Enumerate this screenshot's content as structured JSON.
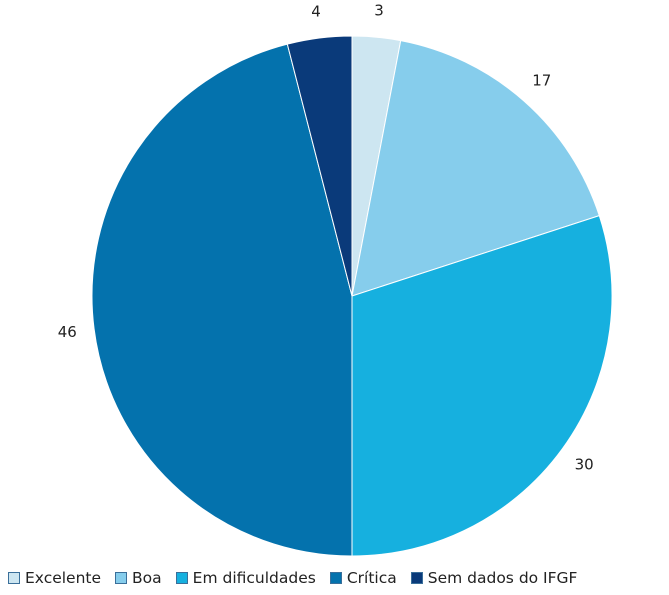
{
  "chart_data": {
    "type": "pie",
    "title": "",
    "categories": [
      "Excelente",
      "Boa",
      "Em dificuldades",
      "Crítica",
      "Sem dados do IFGF"
    ],
    "values": [
      3,
      17,
      30,
      46,
      4
    ],
    "colors": [
      "#cde6f1",
      "#86cdec",
      "#16b0df",
      "#0472ad",
      "#0a3a7a"
    ],
    "data_labels": [
      "3",
      "17",
      "30",
      "46",
      "4"
    ],
    "start_angle_deg": 0,
    "direction": "clockwise",
    "legend_position": "bottom"
  }
}
